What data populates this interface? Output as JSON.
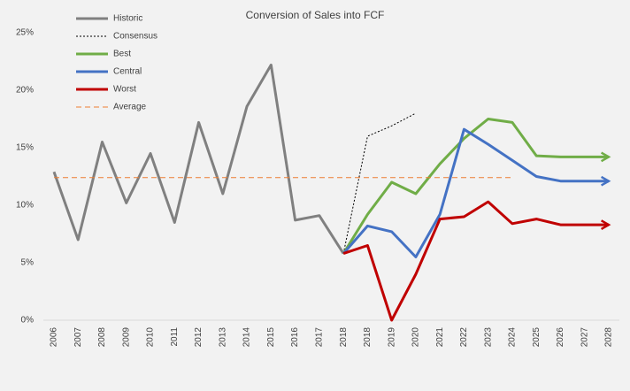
{
  "chart_data": {
    "type": "line",
    "title": "Conversion of Sales into FCF",
    "categories": [
      "2006",
      "2007",
      "2008",
      "2009",
      "2010",
      "2011",
      "2012",
      "2013",
      "2014",
      "2015",
      "2016",
      "2017",
      "2018",
      "2018",
      "2019",
      "2020",
      "2021",
      "2022",
      "2023",
      "2024",
      "2025",
      "2026",
      "2027",
      "2028"
    ],
    "series": [
      {
        "name": "Historic",
        "color": "#808080",
        "width": 3,
        "values": [
          12.9,
          7.0,
          15.5,
          10.2,
          14.5,
          8.5,
          17.2,
          11.0,
          18.6,
          22.2,
          8.7,
          9.1,
          5.8,
          null,
          null,
          null,
          null,
          null,
          null,
          null,
          null,
          null,
          null,
          null
        ]
      },
      {
        "name": "Consensus",
        "color": "#000000",
        "width": 1,
        "dash": "2,2",
        "values": [
          null,
          null,
          null,
          null,
          null,
          null,
          null,
          null,
          null,
          null,
          null,
          null,
          5.8,
          16.0,
          16.9,
          18.0,
          null,
          null,
          null,
          null,
          null,
          null,
          null,
          null
        ]
      },
      {
        "name": "Best",
        "color": "#70ad47",
        "width": 3,
        "arrow": true,
        "values": [
          null,
          null,
          null,
          null,
          null,
          null,
          null,
          null,
          null,
          null,
          null,
          null,
          5.8,
          9.2,
          12.0,
          11.0,
          13.6,
          15.8,
          17.5,
          17.2,
          14.3,
          14.2,
          14.2,
          14.2
        ]
      },
      {
        "name": "Central",
        "color": "#4472c4",
        "width": 3,
        "arrow": true,
        "values": [
          null,
          null,
          null,
          null,
          null,
          null,
          null,
          null,
          null,
          null,
          null,
          null,
          5.8,
          8.2,
          7.7,
          5.5,
          9.2,
          16.6,
          15.3,
          13.9,
          12.5,
          12.1,
          12.1,
          12.1
        ]
      },
      {
        "name": "Worst",
        "color": "#c00000",
        "width": 3,
        "arrow": true,
        "values": [
          null,
          null,
          null,
          null,
          null,
          null,
          null,
          null,
          null,
          null,
          null,
          null,
          5.8,
          6.5,
          0,
          4.0,
          8.8,
          9.0,
          10.3,
          8.4,
          8.8,
          8.3,
          8.3,
          8.3
        ]
      },
      {
        "name": "Average",
        "color": "#ed7d31",
        "width": 1,
        "dash": "6,4",
        "values": [
          12.4,
          12.4,
          12.4,
          12.4,
          12.4,
          12.4,
          12.4,
          12.4,
          12.4,
          12.4,
          12.4,
          12.4,
          12.4,
          12.4,
          12.4,
          12.4,
          12.4,
          12.4,
          12.4,
          12.4,
          null,
          null,
          null,
          null
        ]
      }
    ],
    "ylim": [
      0,
      25
    ],
    "yticks": [
      {
        "value": 0,
        "label": "0%"
      },
      {
        "value": 5,
        "label": "5%"
      },
      {
        "value": 10,
        "label": "10%"
      },
      {
        "value": 15,
        "label": "15%"
      },
      {
        "value": 20,
        "label": "20%"
      },
      {
        "value": 25,
        "label": "25%"
      }
    ],
    "grid": false,
    "legend": "upper left"
  }
}
